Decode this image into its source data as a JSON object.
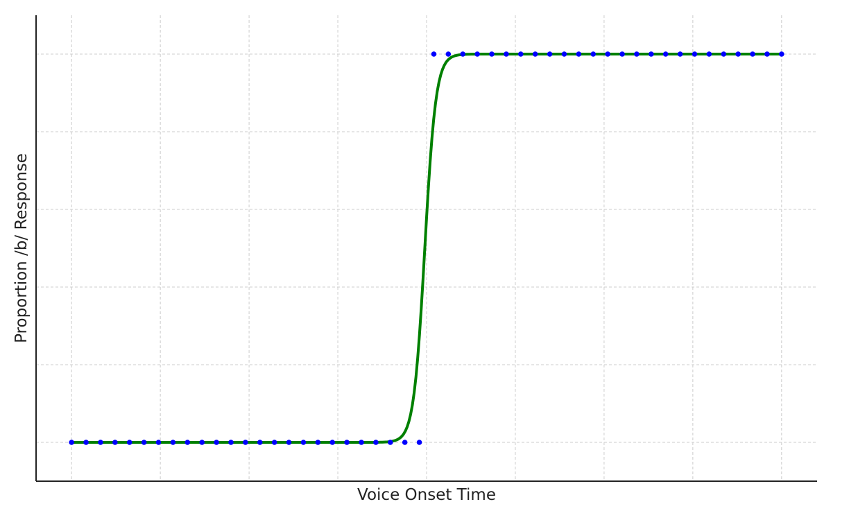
{
  "chart_data": {
    "type": "scatter",
    "xlabel": "Voice Onset Time",
    "ylabel": "Proportion /b/ Response",
    "xlim": [
      -2,
      42
    ],
    "ylim": [
      -0.1,
      1.1
    ],
    "x_gridlines": [
      0,
      5,
      10,
      15,
      20,
      25,
      30,
      35,
      40
    ],
    "y_gridlines": [
      0,
      0.2,
      0.4,
      0.6,
      0.8,
      1.0
    ],
    "grid": true,
    "legend": "none",
    "series": [
      {
        "kind": "points",
        "color": "#0000ff",
        "x": [
          0,
          0.816,
          1.633,
          2.449,
          3.265,
          4.082,
          4.898,
          5.714,
          6.531,
          7.347,
          8.163,
          8.98,
          9.796,
          10.612,
          11.429,
          12.245,
          13.061,
          13.878,
          14.694,
          15.51,
          16.327,
          17.143,
          17.959,
          18.776,
          19.592,
          20.408,
          21.224,
          22.041,
          22.857,
          23.673,
          24.49,
          25.306,
          26.122,
          26.939,
          27.755,
          28.571,
          29.388,
          30.204,
          31.02,
          31.837,
          32.653,
          33.469,
          34.286,
          35.102,
          35.918,
          36.735,
          37.551,
          38.367,
          39.184,
          40
        ],
        "y": [
          0,
          0,
          0,
          0,
          0,
          0,
          0,
          0,
          0,
          0,
          0,
          0,
          0,
          0,
          0,
          0,
          0,
          0,
          0,
          0,
          0,
          0,
          0,
          0,
          0,
          1,
          1,
          1,
          1,
          1,
          1,
          1,
          1,
          1,
          1,
          1,
          1,
          1,
          1,
          1,
          1,
          1,
          1,
          1,
          1,
          1,
          1,
          1,
          1,
          1
        ]
      },
      {
        "kind": "logistic-fit",
        "color": "#008000",
        "x_range": [
          0,
          40
        ],
        "midpoint": 19.9,
        "slope": 3.2
      }
    ]
  }
}
